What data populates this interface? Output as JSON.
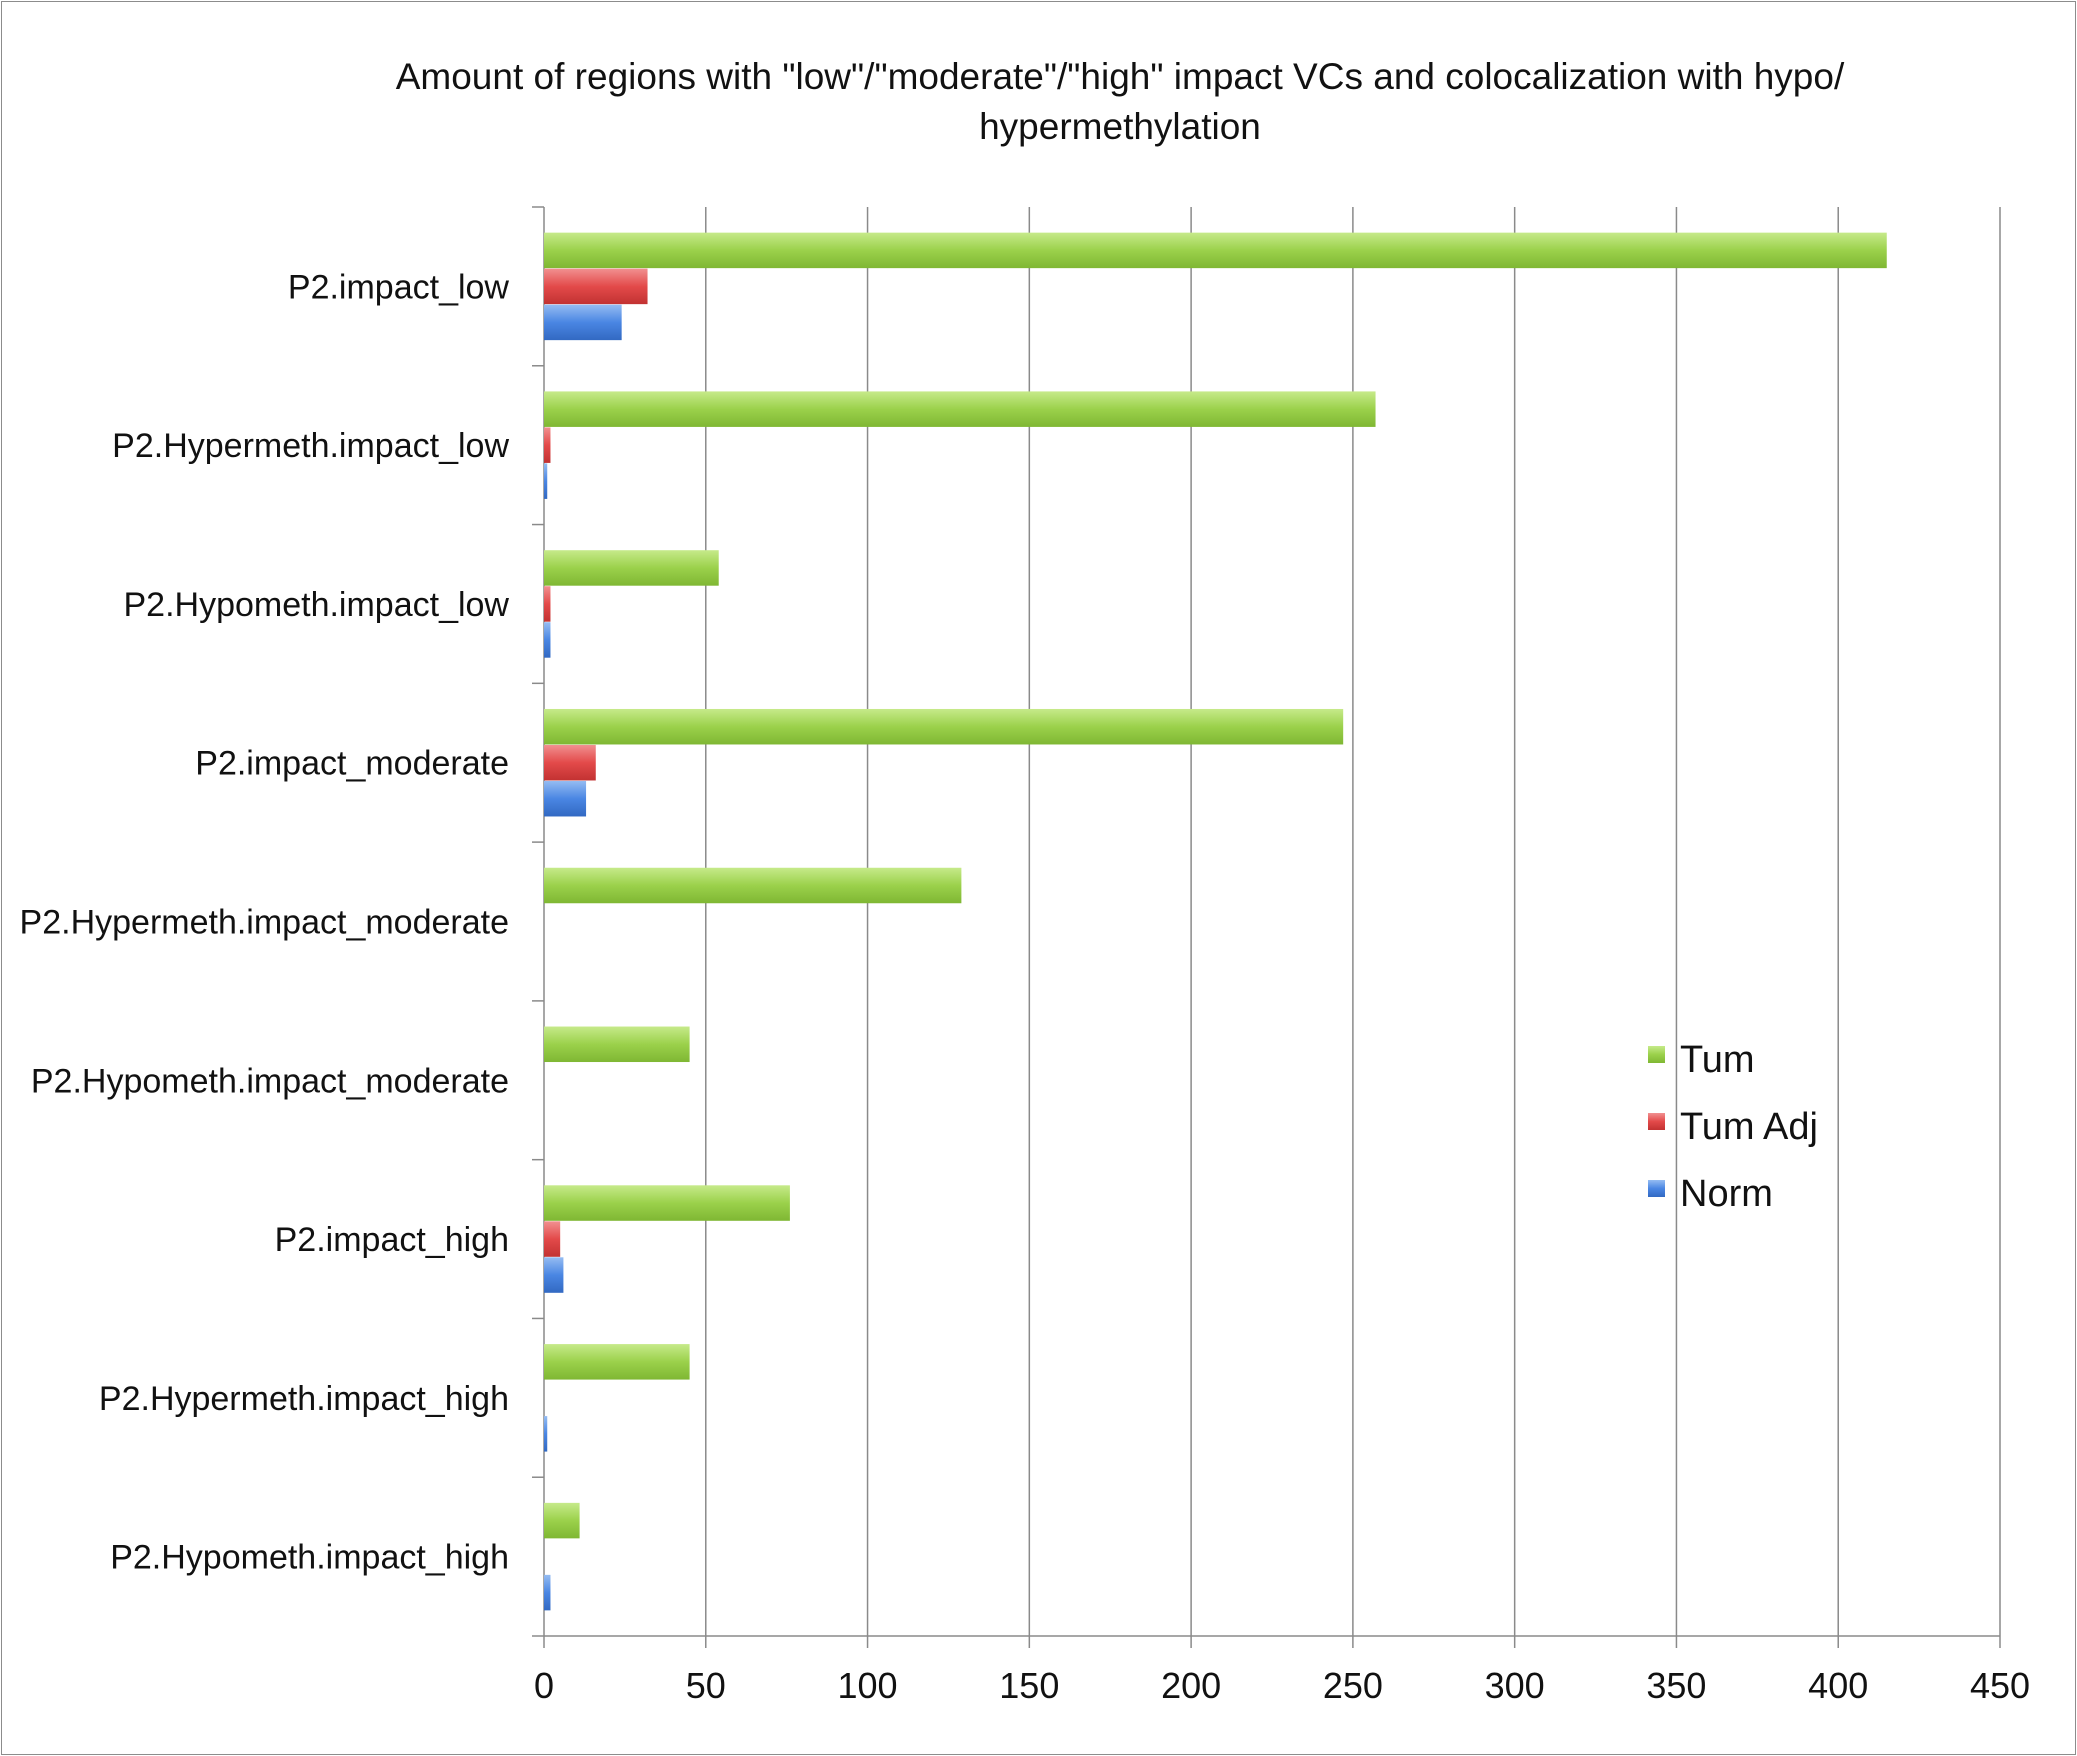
{
  "chart_data": {
    "type": "bar",
    "orientation": "horizontal",
    "title": "Amount of regions with \"low\"/\"moderate\"/\"high\" impact VCs and colocalization with hypo/ hypermethylation",
    "xlabel": "",
    "ylabel": "",
    "xlim": [
      0,
      450
    ],
    "x_ticks": [
      "0",
      "50",
      "100",
      "150",
      "200",
      "250",
      "300",
      "350",
      "400",
      "450"
    ],
    "grid": "vertical major gridlines",
    "legend_position": "right",
    "categories": [
      "P2.impact_low",
      "P2.Hypermeth.impact_low",
      "P2.Hypometh.impact_low",
      "P2.impact_moderate",
      "P2.Hypermeth.impact_moderate",
      "P2.Hypometh.impact_moderate",
      "P2.impact_high",
      "P2.Hypermeth.impact_high",
      "P2.Hypometh.impact_high"
    ],
    "series": [
      {
        "name": "Tum",
        "color": "#9bd14b",
        "values": [
          415,
          257,
          54,
          247,
          129,
          45,
          76,
          45,
          11
        ]
      },
      {
        "name": "Tum Adj",
        "color": "#e34a4a",
        "values": [
          32,
          2,
          2,
          16,
          0,
          0,
          5,
          0,
          0
        ]
      },
      {
        "name": "Norm",
        "color": "#4a86e3",
        "values": [
          24,
          1,
          2,
          13,
          0,
          0,
          6,
          1,
          2
        ]
      }
    ]
  }
}
